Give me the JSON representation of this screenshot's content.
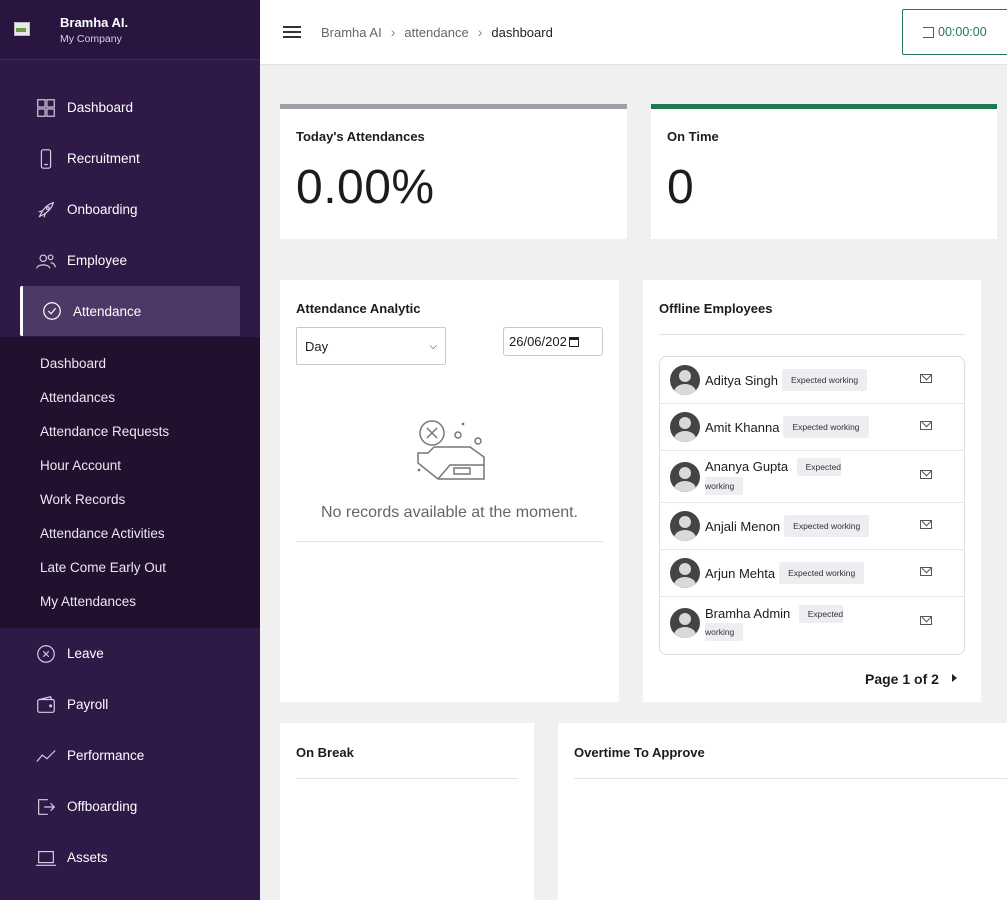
{
  "brand": {
    "name": "Bramha AI.",
    "company": "My Company"
  },
  "sidebar": {
    "items": [
      {
        "label": "Dashboard",
        "icon": "dashboard-grid-icon"
      },
      {
        "label": "Recruitment",
        "icon": "phone-icon"
      },
      {
        "label": "Onboarding",
        "icon": "rocket-icon"
      },
      {
        "label": "Employee",
        "icon": "users-icon"
      },
      {
        "label": "Attendance",
        "icon": "check-circle-icon"
      },
      {
        "label": "Leave",
        "icon": "x-circle-icon"
      },
      {
        "label": "Payroll",
        "icon": "wallet-icon"
      },
      {
        "label": "Performance",
        "icon": "trend-icon"
      },
      {
        "label": "Offboarding",
        "icon": "exit-icon"
      },
      {
        "label": "Assets",
        "icon": "laptop-icon"
      }
    ],
    "attendance_sub": [
      "Dashboard",
      "Attendances",
      "Attendance Requests",
      "Hour Account",
      "Work Records",
      "Attendance Activities",
      "Late Come Early Out",
      "My Attendances"
    ]
  },
  "header": {
    "breadcrumb": [
      "Bramha AI",
      "attendance",
      "dashboard"
    ],
    "timer": "00:00:00"
  },
  "stats": {
    "today": {
      "title": "Today's Attendances",
      "value": "0.00%",
      "color": "#9e9ea6"
    },
    "ontime": {
      "title": "On Time",
      "value": "0",
      "color": "#1f7a4d"
    }
  },
  "analytic": {
    "title": "Attendance Analytic",
    "select_value": "Day",
    "date_value": "26/06/202",
    "empty_text": "No records available at the moment."
  },
  "offline": {
    "title": "Offline Employees",
    "badge": "Expected working",
    "employees": [
      "Aditya Singh",
      "Amit Khanna",
      "Ananya Gupta",
      "Anjali Menon",
      "Arjun Mehta",
      "Bramha Admin"
    ],
    "pager": "Page 1 of 2"
  },
  "onbreak": {
    "title": "On Break"
  },
  "overtime": {
    "title": "Overtime To Approve"
  }
}
